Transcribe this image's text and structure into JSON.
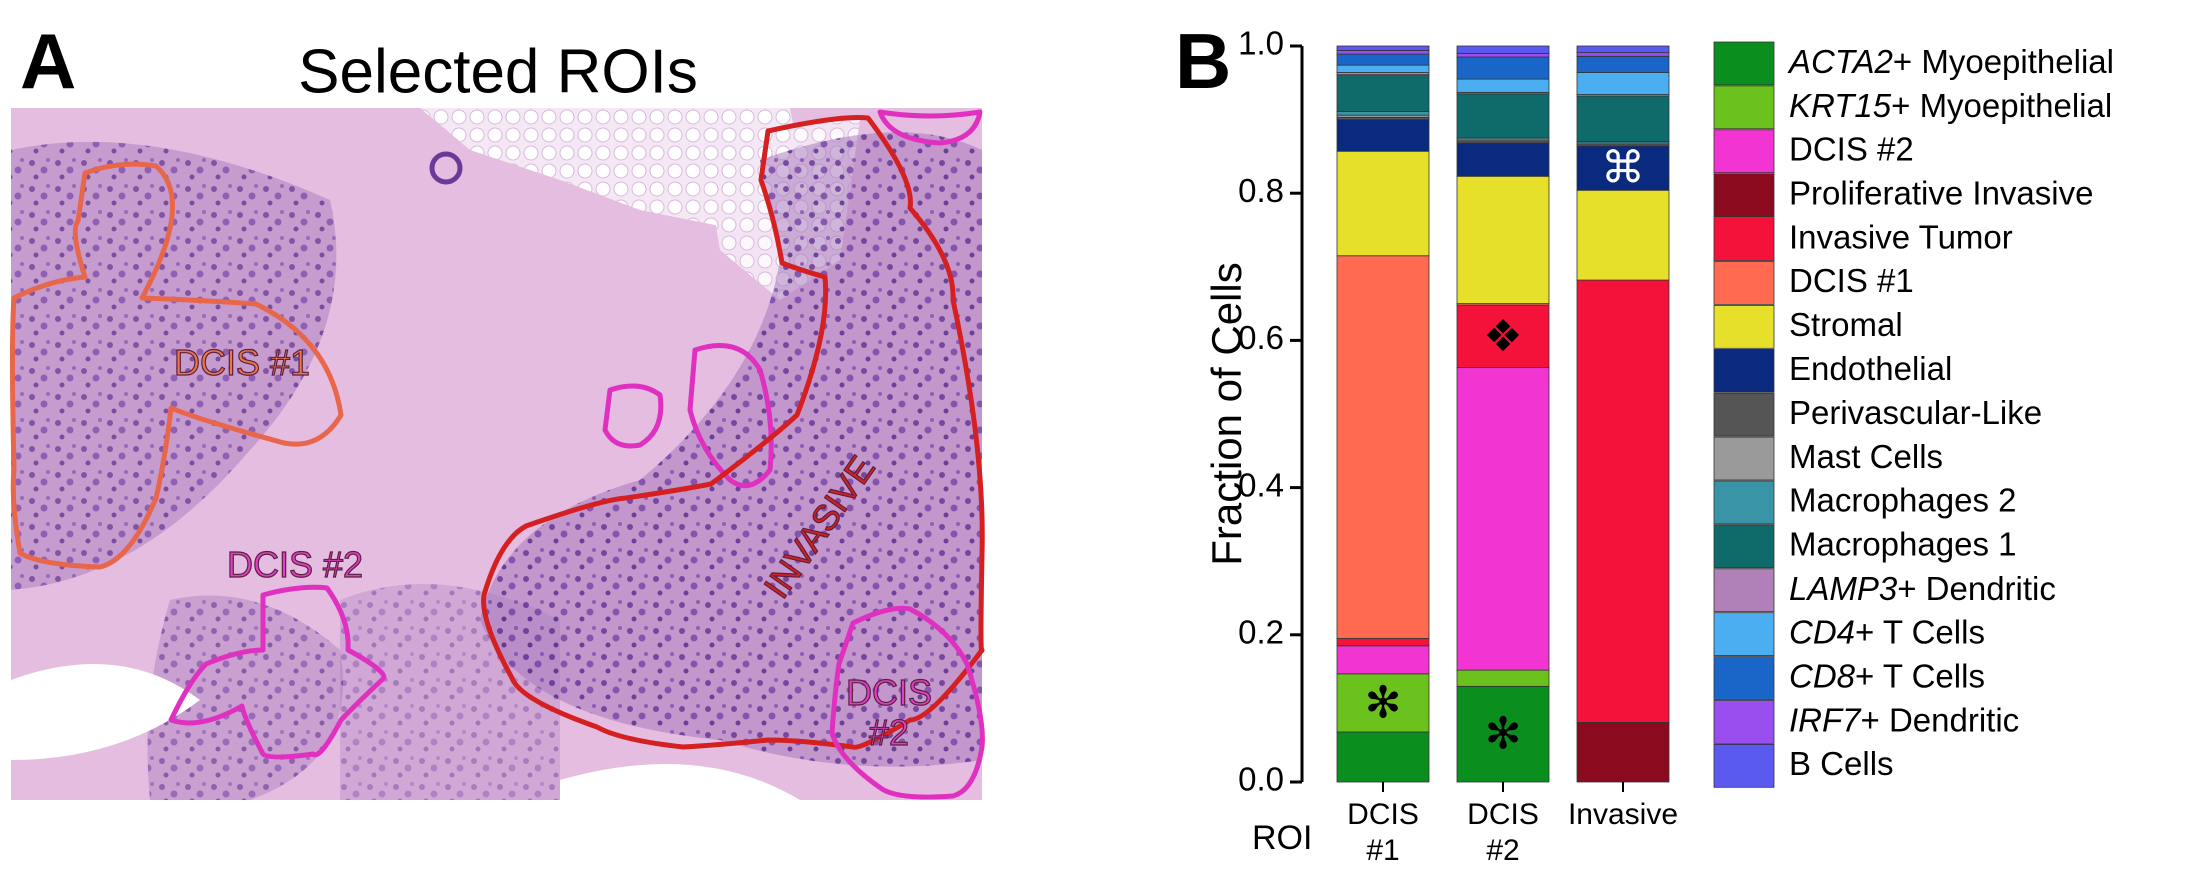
{
  "panel_a": {
    "label": "A",
    "title": "Selected ROIs",
    "roi_labels": [
      "DCIS #1",
      "DCIS #2",
      "INVASIVE",
      "DCIS #2"
    ]
  },
  "chart_data": {
    "type": "stacked_bar",
    "panel_label": "B",
    "y_label": "Fraction of Cells",
    "x_label": "ROI",
    "categories": [
      "DCIS #1",
      "DCIS #2",
      "Invasive"
    ],
    "ylim": [
      0,
      1
    ],
    "yticks": [
      {
        "value": 0,
        "label": "0.0"
      },
      0.2,
      0.4,
      0.6,
      0.8,
      {
        "value": 1,
        "label": "1.0"
      }
    ],
    "series": [
      {
        "name": "ACTA2+ Myoepithelial",
        "color": "#0a8f1e",
        "values": [
          0.068,
          0.13,
          0
        ]
      },
      {
        "name": "KRT15+ Myoepithelial",
        "color": "#6cc21c",
        "values": [
          0.079,
          0.022,
          0
        ]
      },
      {
        "name": "DCIS #2",
        "color": "#f235d2",
        "values": [
          0.038,
          0.411,
          0
        ]
      },
      {
        "name": "Proliferative Invasive",
        "color": "#8b0a1e",
        "values": [
          0,
          0,
          0.081
        ]
      },
      {
        "name": "Invasive Tumor",
        "color": "#f5123a",
        "values": [
          0.01,
          0.085,
          0.601
        ]
      },
      {
        "name": "DCIS #1",
        "color": "#ff6a50",
        "values": [
          0.52,
          0.002,
          0
        ]
      },
      {
        "name": "Stromal",
        "color": "#e6e02a",
        "values": [
          0.142,
          0.173,
          0.122
        ]
      },
      {
        "name": "Endothelial",
        "color": "#0a2a80",
        "values": [
          0.043,
          0.045,
          0.06
        ]
      },
      {
        "name": "Perivascular-Like",
        "color": "#555555",
        "values": [
          0.003,
          0.002,
          0.002
        ]
      },
      {
        "name": "Mast Cells",
        "color": "#9a9a9a",
        "values": [
          0.003,
          0.002,
          0.002
        ]
      },
      {
        "name": "Macrophages 2",
        "color": "#3a94a8",
        "values": [
          0.005,
          0.003,
          0.002
        ]
      },
      {
        "name": "Macrophages 1",
        "color": "#0f6a6a",
        "values": [
          0.05,
          0.06,
          0.062
        ]
      },
      {
        "name": "LAMP3+ Dendritic",
        "color": "#b080b8",
        "values": [
          0.003,
          0.002,
          0.002
        ]
      },
      {
        "name": "CD4+ T Cells",
        "color": "#4aaef0",
        "values": [
          0.01,
          0.018,
          0.03
        ]
      },
      {
        "name": "CD8+ T Cells",
        "color": "#1a66c8",
        "values": [
          0.015,
          0.03,
          0.022
        ]
      },
      {
        "name": "IRF7+ Dendritic",
        "color": "#9a4ef0",
        "values": [
          0.005,
          0.005,
          0.005
        ]
      },
      {
        "name": "B Cells",
        "color": "#5a5af0",
        "values": [
          0.006,
          0.01,
          0.009
        ]
      }
    ],
    "annotations": [
      {
        "text": "✻",
        "category": "DCIS #1",
        "series": "KRT15+ Myoepithelial",
        "color": "#000000"
      },
      {
        "text": "✻",
        "category": "DCIS #2",
        "series": "ACTA2+ Myoepithelial",
        "color": "#000000"
      },
      {
        "text": "❖",
        "category": "DCIS #2",
        "series": "Invasive Tumor",
        "color": "#000000"
      },
      {
        "text": "⌘",
        "category": "Invasive",
        "series": "Endothelial",
        "color": "#ffffff"
      }
    ]
  }
}
